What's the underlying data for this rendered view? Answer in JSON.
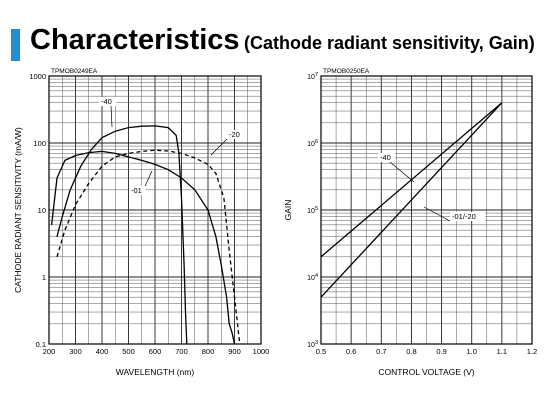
{
  "page": {
    "title": "Characteristics",
    "subtitle": "(Cathode radiant sensitivity, Gain)"
  },
  "colors": {
    "accent": "#1e8fd6"
  },
  "chart_data": [
    {
      "type": "line",
      "figure_id": "TPMOB0249EA",
      "xlabel": "WAVELENGTH (nm)",
      "ylabel": "CATHODE RADIANT SENSITIVITY (mA/W)",
      "xlim": [
        200,
        1000
      ],
      "ylim": [
        0.1,
        1000
      ],
      "yscale": "log",
      "grid": true,
      "x_ticks": [
        200,
        300,
        400,
        500,
        600,
        700,
        800,
        900,
        1000
      ],
      "y_ticks": [
        {
          "value": 0.1,
          "label": "0.1"
        },
        {
          "value": 1,
          "label": "1"
        },
        {
          "value": 10,
          "label": "10"
        },
        {
          "value": 100,
          "label": "100"
        },
        {
          "value": 1000,
          "label": "1000"
        }
      ],
      "series": [
        {
          "name": "-40",
          "dash": "solid",
          "x": [
            230,
            250,
            280,
            320,
            360,
            400,
            450,
            500,
            550,
            600,
            650,
            680,
            690,
            700,
            710,
            715,
            720
          ],
          "y": [
            4,
            8,
            20,
            45,
            80,
            120,
            150,
            170,
            178,
            180,
            170,
            130,
            70,
            15,
            1.5,
            0.3,
            0.1
          ]
        },
        {
          "name": "-20",
          "dash": "dashed",
          "x": [
            230,
            260,
            300,
            350,
            400,
            450,
            500,
            550,
            600,
            650,
            700,
            750,
            800,
            830,
            860,
            880,
            900,
            920
          ],
          "y": [
            2,
            5,
            12,
            25,
            45,
            62,
            70,
            75,
            78,
            76,
            70,
            60,
            48,
            35,
            15,
            2.5,
            0.5,
            0.1
          ]
        },
        {
          "name": "-01",
          "dash": "solid",
          "x": [
            210,
            230,
            260,
            300,
            350,
            400,
            450,
            500,
            550,
            600,
            650,
            700,
            750,
            800,
            830,
            850,
            870,
            880,
            890,
            900
          ],
          "y": [
            6,
            30,
            55,
            65,
            72,
            75,
            70,
            62,
            55,
            48,
            40,
            30,
            20,
            10,
            4,
            1.5,
            0.5,
            0.2,
            0.15,
            0.1
          ]
        }
      ]
    },
    {
      "type": "line",
      "figure_id": "TPMOB0250EA",
      "xlabel": "CONTROL VOLTAGE (V)",
      "ylabel": "GAIN",
      "xlim": [
        0.5,
        1.2
      ],
      "ylim": [
        1000,
        10000000
      ],
      "yscale": "log",
      "grid": true,
      "x_ticks": [
        {
          "value": 0.5,
          "label": "0.5"
        },
        {
          "value": 0.6,
          "label": "0.6"
        },
        {
          "value": 0.7,
          "label": "0.7"
        },
        {
          "value": 0.8,
          "label": "0.8"
        },
        {
          "value": 0.9,
          "label": "0.9"
        },
        {
          "value": 1.0,
          "label": "1.0"
        },
        {
          "value": 1.1,
          "label": "1.1"
        },
        {
          "value": 1.2,
          "label": "1.2"
        }
      ],
      "y_ticks": [
        {
          "value": 1000,
          "mantissa": "10",
          "exp": "3"
        },
        {
          "value": 10000,
          "mantissa": "10",
          "exp": "4"
        },
        {
          "value": 100000,
          "mantissa": "10",
          "exp": "5"
        },
        {
          "value": 1000000,
          "mantissa": "10",
          "exp": "6"
        },
        {
          "value": 10000000,
          "mantissa": "10",
          "exp": "7"
        }
      ],
      "series": [
        {
          "name": "-40",
          "dash": "solid",
          "x": [
            0.5,
            1.1
          ],
          "y": [
            20000,
            4000000
          ]
        },
        {
          "name": "-01/-20",
          "dash": "solid",
          "x": [
            0.5,
            1.1
          ],
          "y": [
            5000,
            4000000
          ]
        }
      ]
    }
  ]
}
